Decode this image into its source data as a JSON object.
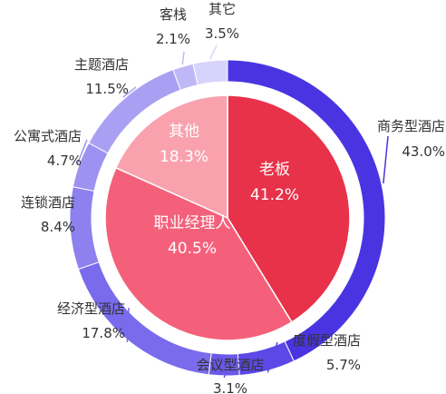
{
  "chart_data": [
    {
      "type": "pie",
      "series_role": "outer-ring",
      "labels": [
        "商务型酒店",
        "度假型酒店",
        "会议型酒店",
        "经济型酒店",
        "连锁酒店",
        "公寓式酒店",
        "主题酒店",
        "客栈",
        "其它"
      ],
      "values": [
        43.0,
        5.7,
        3.1,
        17.8,
        8.4,
        4.7,
        11.5,
        2.1,
        3.5
      ],
      "value_labels": [
        "43.0%",
        "5.7%",
        "3.1%",
        "17.8%",
        "8.4%",
        "4.7%",
        "11.5%",
        "2.1%",
        "3.5%"
      ],
      "colors": [
        "#4a34e2",
        "#5c48e6",
        "#6a58e8",
        "#7a6aec",
        "#8e80ef",
        "#9d91f1",
        "#aaa0f3",
        "#c0b8f6",
        "#d8d3fa"
      ]
    },
    {
      "type": "pie",
      "series_role": "inner-pie",
      "labels": [
        "老板",
        "职业经理人",
        "其他"
      ],
      "values": [
        41.2,
        40.5,
        18.3
      ],
      "value_labels": [
        "41.2%",
        "40.5%",
        "18.3%"
      ],
      "colors": [
        "#e8324a",
        "#f4607a",
        "#f9a2ae"
      ]
    }
  ]
}
